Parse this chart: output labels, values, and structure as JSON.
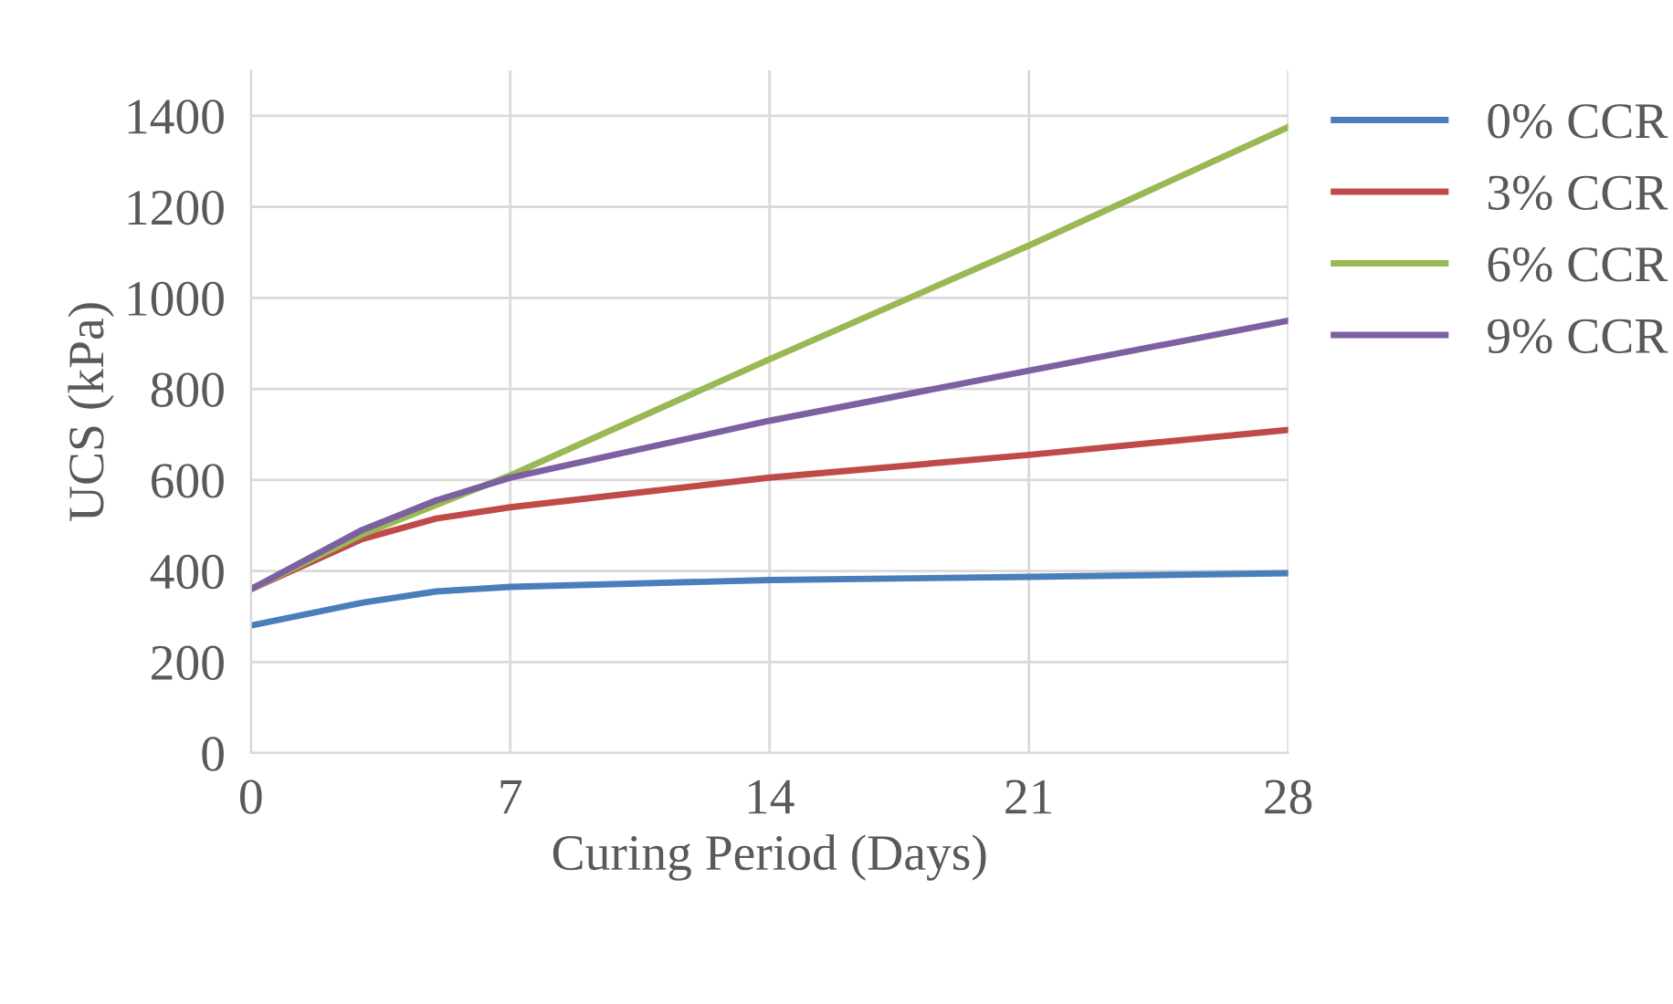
{
  "chart_data": {
    "type": "line",
    "xlabel": "Curing Period (Days)",
    "ylabel": "UCS (kPa)",
    "x": [
      0,
      3,
      5,
      7,
      14,
      21,
      28
    ],
    "series": [
      {
        "name": "0% CCR",
        "color": "#4a7ebb",
        "values": [
          280,
          330,
          355,
          365,
          380,
          387,
          395
        ]
      },
      {
        "name": "3% CCR",
        "color": "#be4b48",
        "values": [
          360,
          470,
          515,
          540,
          605,
          655,
          710
        ]
      },
      {
        "name": "6% CCR",
        "color": "#98b954",
        "values": [
          360,
          480,
          545,
          610,
          865,
          1115,
          1375
        ]
      },
      {
        "name": "9% CCR",
        "color": "#7d60a0",
        "values": [
          360,
          490,
          555,
          605,
          730,
          840,
          950
        ]
      }
    ],
    "xlim": [
      0,
      28
    ],
    "xticks": [
      0,
      7,
      14,
      21,
      28
    ],
    "ylim": [
      0,
      1500
    ],
    "yticks": [
      0,
      200,
      400,
      600,
      800,
      1000,
      1200,
      1400
    ],
    "grid": true,
    "legend": "right",
    "marker": "none",
    "line_style": "solid"
  }
}
